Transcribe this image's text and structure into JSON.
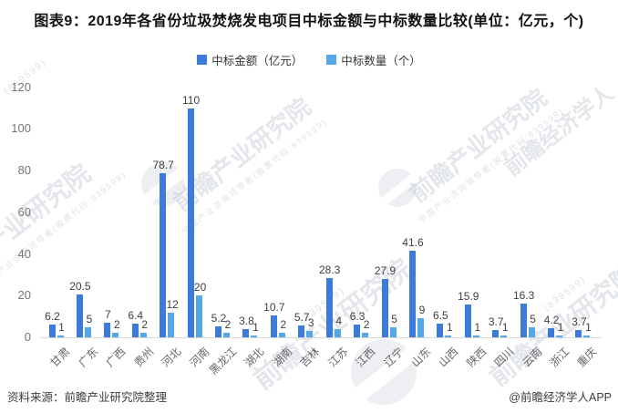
{
  "title": "图表9：2019年各省份垃圾焚烧发电项目中标金额与中标数量比较(单位：亿元，个)",
  "legend": [
    {
      "label": "中标金额（亿元）",
      "color": "#3c7bd9"
    },
    {
      "label": "中标数量（个）",
      "color": "#55a8e8"
    }
  ],
  "chart_data": {
    "type": "bar",
    "title": "图表9：2019年各省份垃圾焚烧发电项目中标金额与中标数量比较(单位：亿元，个)",
    "categories": [
      "甘肃",
      "广东",
      "广西",
      "贵州",
      "河北",
      "河南",
      "黑龙江",
      "湖北",
      "湖南",
      "吉林",
      "江苏",
      "江西",
      "辽宁",
      "山东",
      "山西",
      "陕西",
      "四川",
      "云南",
      "浙江",
      "重庆"
    ],
    "series": [
      {
        "name": "中标金额（亿元）",
        "color": "#3c7bd9",
        "values": [
          6.2,
          20.5,
          7,
          6.4,
          78.7,
          110,
          5.2,
          3.8,
          10.7,
          5.7,
          28.3,
          6.3,
          27.9,
          41.6,
          6.5,
          15.9,
          3.7,
          16.3,
          4.2,
          3.7
        ]
      },
      {
        "name": "中标数量（个）",
        "color": "#55a8e8",
        "values": [
          1,
          5,
          2,
          2,
          12,
          20,
          2,
          1,
          2,
          3,
          4,
          2,
          5,
          9,
          1,
          1,
          1,
          5,
          1,
          1
        ]
      }
    ],
    "xlabel": "",
    "ylabel": "",
    "ylim": [
      0,
      120
    ],
    "yticks": [
      0,
      20,
      40,
      60,
      80,
      100,
      120
    ],
    "grid": false,
    "legend_position": "top",
    "bar_label_color": "#404040"
  },
  "footer": {
    "source": "资料来源：前瞻产业研究院整理",
    "credit": "@前瞻经济学人APP"
  },
  "watermark": {
    "brand": "前瞻产业研究院",
    "brand2": "前瞻经济学人",
    "tagline": "中国产业咨询领导者(股票代码:839599)",
    "code": "(839599)"
  }
}
